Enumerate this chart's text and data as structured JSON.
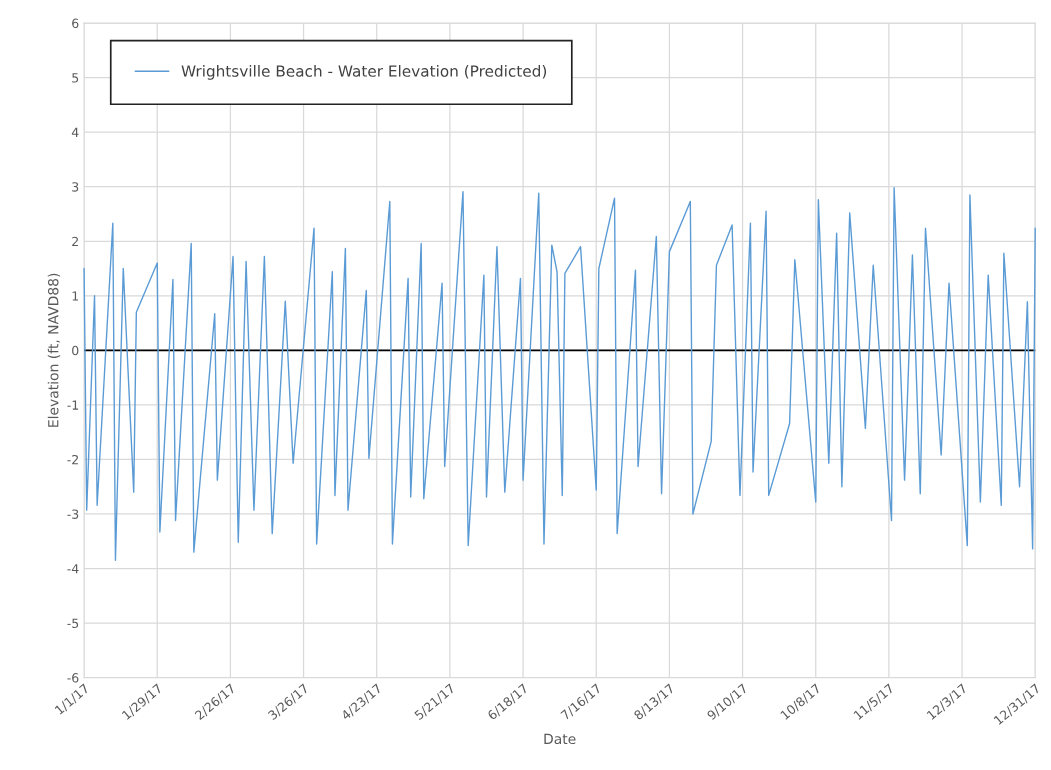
{
  "chart_data": {
    "type": "line",
    "xlabel": "Date",
    "ylabel": "Elevation (ft, NAVD88)",
    "x": [
      "2017-01-01",
      "2017-01-02",
      "2017-01-05",
      "2017-01-06",
      "2017-01-12",
      "2017-01-13",
      "2017-01-16",
      "2017-01-20",
      "2017-01-21",
      "2017-01-29",
      "2017-01-30",
      "2017-02-04",
      "2017-02-05",
      "2017-02-11",
      "2017-02-12",
      "2017-02-20",
      "2017-02-21",
      "2017-02-27",
      "2017-03-01",
      "2017-03-04",
      "2017-03-07",
      "2017-03-11",
      "2017-03-14",
      "2017-03-19",
      "2017-03-22",
      "2017-03-30",
      "2017-03-31",
      "2017-04-06",
      "2017-04-07",
      "2017-04-11",
      "2017-04-12",
      "2017-04-19",
      "2017-04-20",
      "2017-04-28",
      "2017-04-29",
      "2017-05-05",
      "2017-05-06",
      "2017-05-10",
      "2017-05-11",
      "2017-05-18",
      "2017-05-19",
      "2017-05-26",
      "2017-05-28",
      "2017-06-03",
      "2017-06-04",
      "2017-06-08",
      "2017-06-11",
      "2017-06-17",
      "2017-06-18",
      "2017-06-24",
      "2017-06-26",
      "2017-06-29",
      "2017-07-01",
      "2017-07-03",
      "2017-07-04",
      "2017-07-10",
      "2017-07-16",
      "2017-07-17",
      "2017-07-23",
      "2017-07-24",
      "2017-07-31",
      "2017-08-01",
      "2017-08-08",
      "2017-08-10",
      "2017-08-13",
      "2017-08-21",
      "2017-08-22",
      "2017-08-29",
      "2017-08-31",
      "2017-09-06",
      "2017-09-09",
      "2017-09-13",
      "2017-09-14",
      "2017-09-19",
      "2017-09-20",
      "2017-09-28",
      "2017-09-30",
      "2017-10-08",
      "2017-10-09",
      "2017-10-13",
      "2017-10-16",
      "2017-10-18",
      "2017-10-21",
      "2017-10-27",
      "2017-10-30",
      "2017-11-06",
      "2017-11-07",
      "2017-11-11",
      "2017-11-14",
      "2017-11-17",
      "2017-11-19",
      "2017-11-25",
      "2017-11-28",
      "2017-12-05",
      "2017-12-06",
      "2017-12-10",
      "2017-12-13",
      "2017-12-18",
      "2017-12-19",
      "2017-12-25",
      "2017-12-28",
      "2017-12-30",
      "2017-12-31"
    ],
    "series": [
      {
        "name": "Wrightsville Beach - Water Elevation (Predicted)",
        "color": "#5b9bd5",
        "values": [
          1.5,
          -2.93,
          1.0,
          -2.84,
          2.33,
          -3.85,
          1.5,
          -2.6,
          0.7,
          1.6,
          -3.33,
          1.3,
          -3.12,
          1.96,
          -3.7,
          0.67,
          -2.38,
          1.72,
          -3.52,
          1.63,
          -2.93,
          1.72,
          -3.36,
          0.9,
          -2.07,
          2.24,
          -3.55,
          1.44,
          -2.66,
          1.87,
          -2.93,
          1.1,
          -1.98,
          2.73,
          -3.55,
          1.32,
          -2.69,
          1.96,
          -2.72,
          1.23,
          -2.13,
          2.91,
          -3.58,
          1.38,
          -2.69,
          1.9,
          -2.6,
          1.32,
          -2.38,
          2.88,
          -3.55,
          1.93,
          1.44,
          -2.66,
          1.41,
          1.9,
          -2.56,
          1.5,
          2.79,
          -3.36,
          1.47,
          -2.13,
          2.09,
          -2.63,
          1.81,
          2.73,
          -3.0,
          -1.67,
          1.56,
          2.3,
          -2.66,
          2.33,
          -2.23,
          2.55,
          -2.66,
          -1.34,
          1.66,
          -2.78,
          2.76,
          -2.07,
          2.15,
          -2.5,
          2.52,
          -1.43,
          1.56,
          -3.12,
          2.98,
          -2.38,
          1.75,
          -2.63,
          2.24,
          -1.92,
          1.23,
          -3.58,
          2.85,
          -2.78,
          1.38,
          -2.84,
          1.78,
          -2.5,
          0.89,
          -3.64,
          2.24
        ]
      }
    ],
    "xlim": [
      "2017-01-01",
      "2017-12-31"
    ],
    "xticks": [
      {
        "value": "2017-01-01",
        "label": "1/1/17"
      },
      {
        "value": "2017-01-29",
        "label": "1/29/17"
      },
      {
        "value": "2017-02-26",
        "label": "2/26/17"
      },
      {
        "value": "2017-03-26",
        "label": "3/26/17"
      },
      {
        "value": "2017-04-23",
        "label": "4/23/17"
      },
      {
        "value": "2017-05-21",
        "label": "5/21/17"
      },
      {
        "value": "2017-06-18",
        "label": "6/18/17"
      },
      {
        "value": "2017-07-16",
        "label": "7/16/17"
      },
      {
        "value": "2017-08-13",
        "label": "8/13/17"
      },
      {
        "value": "2017-09-10",
        "label": "9/10/17"
      },
      {
        "value": "2017-10-08",
        "label": "10/8/17"
      },
      {
        "value": "2017-11-05",
        "label": "11/5/17"
      },
      {
        "value": "2017-12-03",
        "label": "12/3/17"
      },
      {
        "value": "2017-12-31",
        "label": "12/31/17"
      }
    ],
    "ylim": [
      -6,
      6
    ],
    "yticks": [
      -6,
      -5,
      -4,
      -3,
      -2,
      -1,
      0,
      1,
      2,
      3,
      4,
      5,
      6
    ],
    "ref_lines": [
      {
        "axis": "y",
        "value": 0,
        "color": "#000000"
      }
    ],
    "grid": true,
    "legend": "top left",
    "marker": "none",
    "line_style": "solid"
  }
}
